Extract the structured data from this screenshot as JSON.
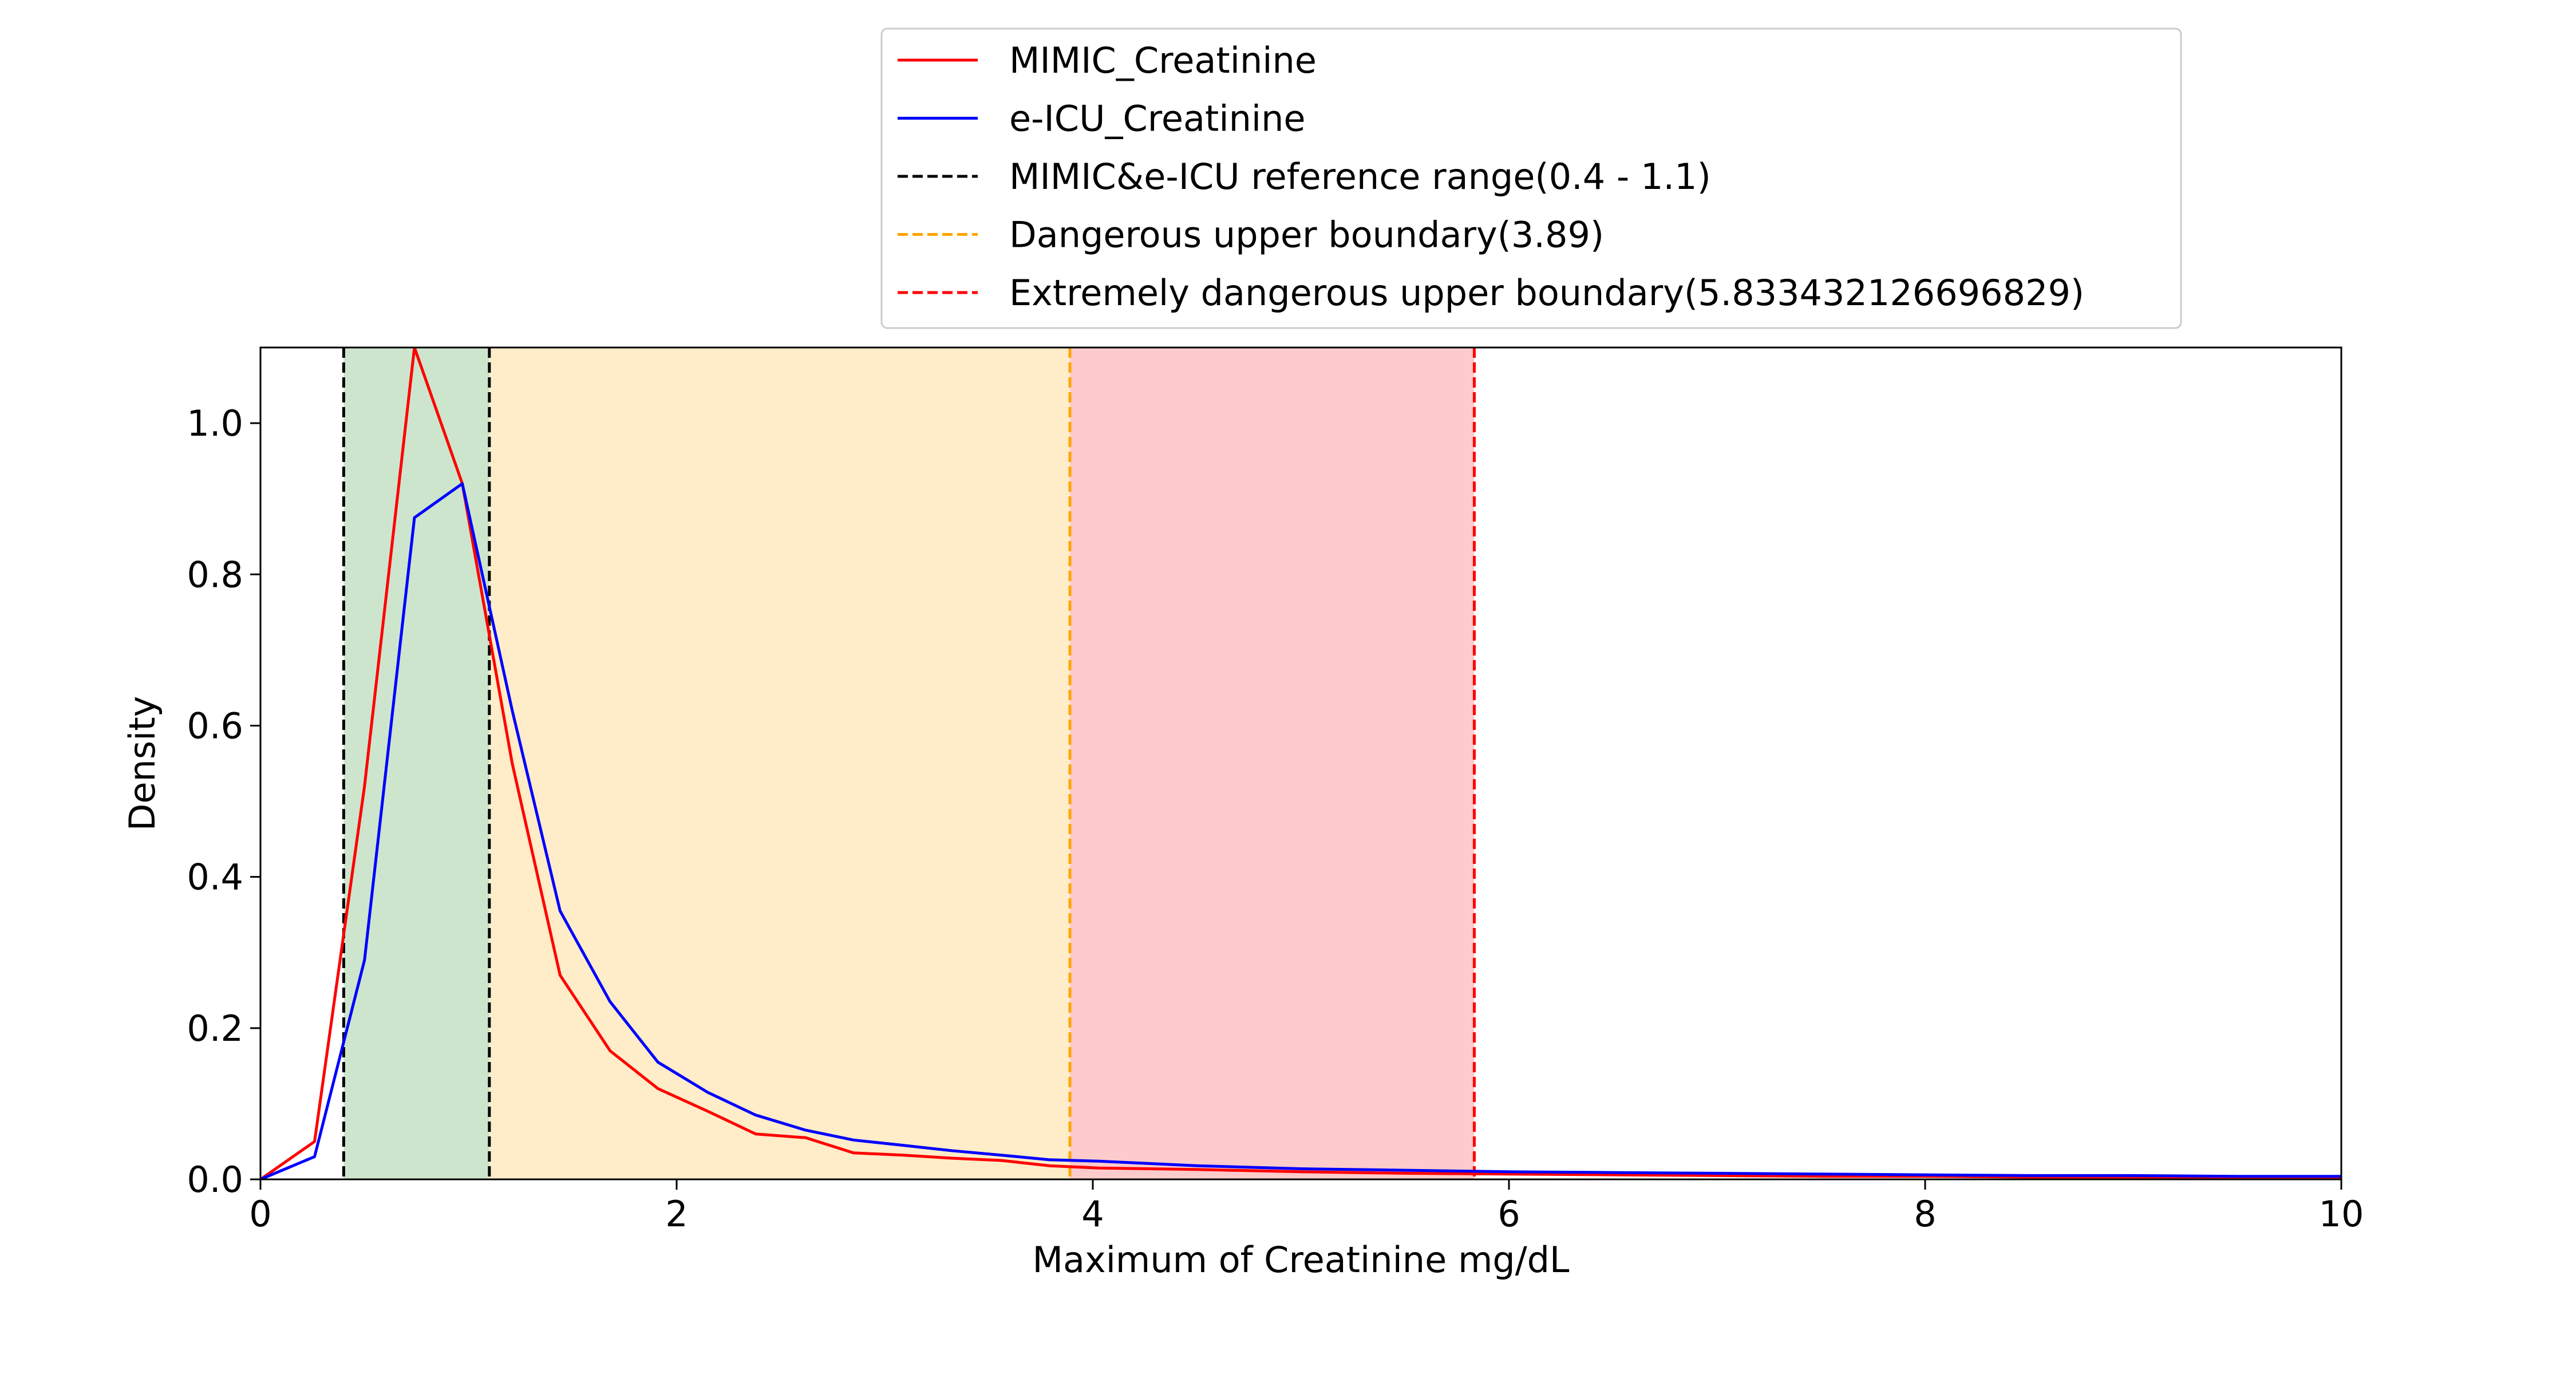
{
  "chart_data": {
    "type": "line",
    "title": "",
    "xlabel": "Maximum of Creatinine mg/dL",
    "ylabel": "Density",
    "xlim": [
      0,
      10
    ],
    "ylim": [
      0,
      1.1
    ],
    "xticks": [
      0,
      2,
      4,
      6,
      8,
      10
    ],
    "xtick_labels": [
      "0",
      "2",
      "4",
      "6",
      "8",
      "10"
    ],
    "yticks": [
      0.0,
      0.2,
      0.4,
      0.6,
      0.8,
      1.0
    ],
    "ytick_labels": [
      "0.0",
      "0.2",
      "0.4",
      "0.6",
      "0.8",
      "1.0"
    ],
    "grid": false,
    "legend_position": "top-center, above the plot",
    "series": [
      {
        "name": "MIMIC_Creatinine",
        "color": "#ff0000",
        "x": [
          0.0,
          0.26,
          0.5,
          0.74,
          0.97,
          1.21,
          1.44,
          1.68,
          1.91,
          2.15,
          2.38,
          2.62,
          2.85,
          3.09,
          3.32,
          3.56,
          3.79,
          4.03,
          4.5,
          5.0,
          5.5,
          6.0,
          6.5,
          7.0,
          7.5,
          8.0,
          8.5,
          9.0,
          9.5,
          10.0
        ],
        "y": [
          0.0,
          0.05,
          0.52,
          1.1,
          0.92,
          0.55,
          0.27,
          0.17,
          0.12,
          0.09,
          0.06,
          0.055,
          0.035,
          0.032,
          0.028,
          0.025,
          0.018,
          0.015,
          0.013,
          0.01,
          0.008,
          0.007,
          0.006,
          0.005,
          0.004,
          0.004,
          0.003,
          0.003,
          0.002,
          0.002
        ]
      },
      {
        "name": "e-ICU_Creatinine",
        "color": "#0000ff",
        "x": [
          0.0,
          0.26,
          0.5,
          0.74,
          0.97,
          1.21,
          1.44,
          1.68,
          1.91,
          2.15,
          2.38,
          2.62,
          2.85,
          3.09,
          3.32,
          3.56,
          3.79,
          4.03,
          4.5,
          5.0,
          5.5,
          6.0,
          6.5,
          7.0,
          7.5,
          8.0,
          8.5,
          9.0,
          9.5,
          10.0
        ],
        "y": [
          0.0,
          0.03,
          0.29,
          0.875,
          0.92,
          0.62,
          0.355,
          0.235,
          0.155,
          0.115,
          0.085,
          0.065,
          0.052,
          0.045,
          0.038,
          0.032,
          0.026,
          0.024,
          0.018,
          0.014,
          0.012,
          0.01,
          0.009,
          0.008,
          0.007,
          0.006,
          0.005,
          0.005,
          0.004,
          0.004
        ]
      },
      {
        "name": "MIMIC&e-ICU reference range(0.4 - 1.1)",
        "color": "#000000",
        "style": "dashed",
        "vlines": [
          0.4,
          1.1
        ]
      },
      {
        "name": "Dangerous upper boundary(3.89)",
        "color": "#ffa500",
        "style": "dashed",
        "vlines": [
          3.89
        ]
      },
      {
        "name": "Extremely dangerous upper boundary(5.833432126696829)",
        "color": "#ff0000",
        "style": "dashed",
        "vlines": [
          5.833432126696829
        ]
      }
    ],
    "shaded_regions": [
      {
        "x0": 0.4,
        "x1": 1.1,
        "color": "#cde5cd"
      },
      {
        "x0": 1.1,
        "x1": 3.89,
        "color": "#ffecc8"
      },
      {
        "x0": 3.89,
        "x1": 5.833432126696829,
        "color": "#fdcbcb"
      }
    ]
  }
}
